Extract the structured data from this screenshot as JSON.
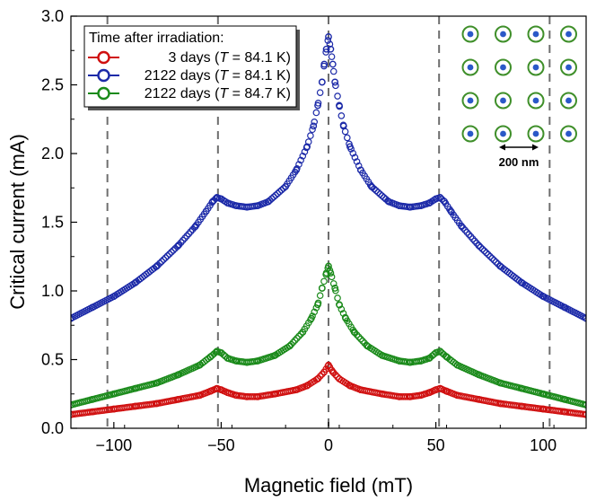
{
  "chart_data": {
    "type": "scatter",
    "xlabel": "Magnetic field (mT)",
    "ylabel": "Critical current (mA)",
    "xlim": [
      -120,
      120
    ],
    "ylim": [
      0.0,
      3.0
    ],
    "x_ticks": [
      -100,
      -50,
      0,
      50,
      100
    ],
    "y_ticks": [
      0.0,
      0.5,
      1.0,
      1.5,
      2.0,
      2.5,
      3.0
    ],
    "x_tick_labels": [
      "−100",
      "−50",
      "0",
      "50",
      "100"
    ],
    "y_tick_labels": [
      "0.0",
      "0.5",
      "1.0",
      "1.5",
      "2.0",
      "2.5",
      "3.0"
    ],
    "reference_lines_x": [
      -103,
      -51.5,
      0,
      51.5,
      103
    ],
    "legend": {
      "title": "Time after irradiation:",
      "position": "top-left",
      "entries": [
        {
          "days": "3 days (",
          "T": "T",
          "rest": " = 84.1 K)"
        },
        {
          "days": "2122 days (",
          "T": "T",
          "rest": " = 84.1 K)"
        },
        {
          "days": "2122 days (",
          "T": "T",
          "rest": " = 84.7 K)"
        }
      ]
    },
    "inset": {
      "scale_label": "200 nm",
      "lattice": "square array of circular pinning sites (4 x 4)"
    },
    "series": [
      {
        "name": "3 days (T = 84.1 K)",
        "color": "#d01010",
        "x": [
          -120,
          -110,
          -100,
          -90,
          -80,
          -70,
          -60,
          -55,
          -52,
          -50,
          -47,
          -43,
          -38,
          -33,
          -25,
          -15,
          -10,
          -5,
          -2,
          0,
          2,
          5,
          10,
          15,
          25,
          33,
          38,
          43,
          47,
          50,
          52,
          55,
          60,
          70,
          80,
          90,
          100,
          110,
          120
        ],
        "y": [
          0.1,
          0.12,
          0.14,
          0.16,
          0.18,
          0.21,
          0.24,
          0.27,
          0.29,
          0.28,
          0.26,
          0.24,
          0.23,
          0.23,
          0.25,
          0.28,
          0.31,
          0.36,
          0.41,
          0.46,
          0.41,
          0.36,
          0.31,
          0.28,
          0.25,
          0.23,
          0.23,
          0.24,
          0.26,
          0.28,
          0.29,
          0.27,
          0.24,
          0.21,
          0.18,
          0.16,
          0.14,
          0.12,
          0.1
        ]
      },
      {
        "name": "2122 days (T = 84.1 K)",
        "color": "#1c2aa8",
        "x": [
          -120,
          -110,
          -100,
          -90,
          -80,
          -70,
          -62,
          -57,
          -54,
          -52,
          -50,
          -47,
          -43,
          -38,
          -33,
          -28,
          -20,
          -15,
          -10,
          -7,
          -5,
          -3,
          -2,
          -1,
          0,
          1,
          2,
          3,
          5,
          7,
          10,
          15,
          20,
          28,
          33,
          38,
          43,
          47,
          50,
          52,
          54,
          57,
          62,
          70,
          80,
          90,
          100,
          110,
          120
        ],
        "y": [
          0.8,
          0.88,
          0.96,
          1.06,
          1.18,
          1.33,
          1.47,
          1.58,
          1.65,
          1.68,
          1.67,
          1.64,
          1.62,
          1.61,
          1.62,
          1.65,
          1.76,
          1.88,
          2.05,
          2.2,
          2.35,
          2.52,
          2.65,
          2.76,
          2.85,
          2.76,
          2.65,
          2.52,
          2.35,
          2.2,
          2.05,
          1.88,
          1.76,
          1.65,
          1.62,
          1.61,
          1.62,
          1.64,
          1.67,
          1.68,
          1.65,
          1.58,
          1.47,
          1.33,
          1.18,
          1.06,
          0.96,
          0.88,
          0.8
        ]
      },
      {
        "name": "2122 days (T = 84.7 K)",
        "color": "#1a8a1a",
        "x": [
          -120,
          -110,
          -100,
          -90,
          -80,
          -70,
          -60,
          -55,
          -52,
          -50,
          -47,
          -43,
          -38,
          -33,
          -25,
          -18,
          -12,
          -8,
          -5,
          -3,
          -1,
          0,
          1,
          3,
          5,
          8,
          12,
          18,
          25,
          33,
          38,
          43,
          47,
          50,
          52,
          55,
          60,
          70,
          80,
          90,
          100,
          110,
          120
        ],
        "y": [
          0.17,
          0.21,
          0.25,
          0.29,
          0.33,
          0.39,
          0.46,
          0.52,
          0.56,
          0.55,
          0.51,
          0.49,
          0.48,
          0.49,
          0.53,
          0.6,
          0.7,
          0.8,
          0.9,
          1.02,
          1.13,
          1.18,
          1.13,
          1.02,
          0.9,
          0.8,
          0.7,
          0.6,
          0.53,
          0.49,
          0.48,
          0.49,
          0.51,
          0.55,
          0.56,
          0.52,
          0.46,
          0.39,
          0.33,
          0.29,
          0.25,
          0.21,
          0.17
        ]
      }
    ]
  }
}
